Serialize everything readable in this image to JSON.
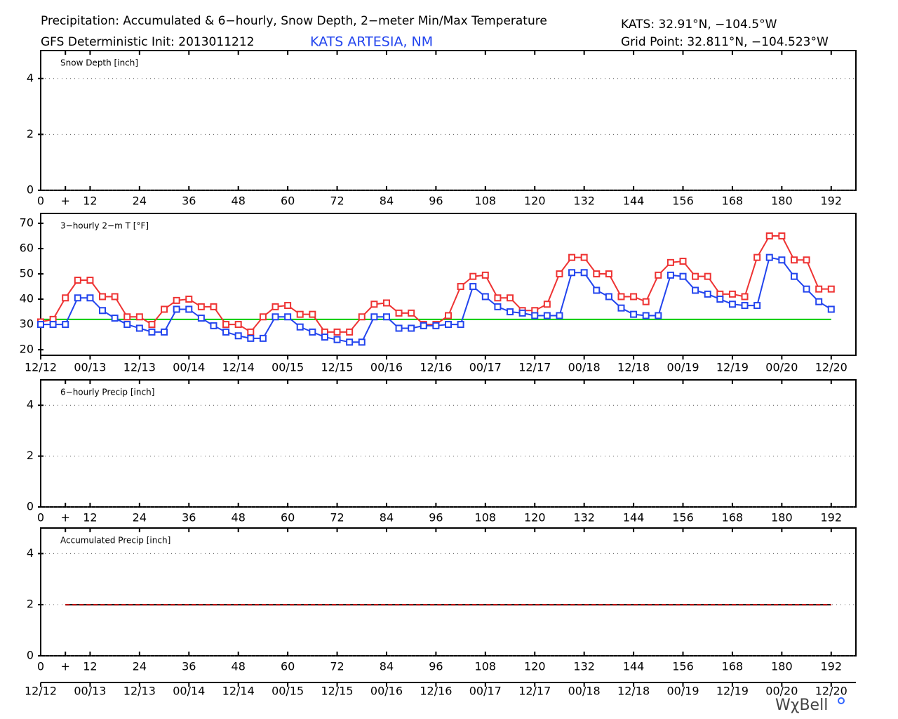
{
  "header": {
    "title": "Precipitation: Accumulated & 6−hourly, Snow Depth, 2−meter Min/Max Temperature",
    "model": "GFS Deterministic Init: 2013011212",
    "station": "KATS ARTESIA, NM",
    "station_coords": "KATS: 32.91°N, −104.5°W",
    "grid_point": "Grid Point: 32.811°N, −104.523°W"
  },
  "footer": {
    "logo": "WχBell"
  },
  "chart_data": [
    {
      "type": "line",
      "title": "Snow Depth [inch]",
      "xlim": [
        0,
        198
      ],
      "ylim": [
        0,
        5
      ],
      "yticks": [
        0,
        2,
        4
      ],
      "grid": true,
      "xticks": [
        0,
        {
          "value": 6,
          "label": "+"
        },
        12,
        24,
        36,
        48,
        60,
        72,
        84,
        96,
        108,
        120,
        132,
        144,
        156,
        168,
        180,
        192
      ],
      "series": []
    },
    {
      "type": "line",
      "title": "3−hourly 2−m T [°F]",
      "xlim": [
        0,
        198
      ],
      "ylim": [
        17.8,
        73.9
      ],
      "yticks": [
        20,
        30,
        40,
        50,
        60,
        70
      ],
      "grid": false,
      "markers": true,
      "date_ticks": [
        {
          "value": 0,
          "label": "12/12"
        },
        {
          "value": 12,
          "label": "00/13"
        },
        {
          "value": 24,
          "label": "12/13"
        },
        {
          "value": 36,
          "label": "00/14"
        },
        {
          "value": 48,
          "label": "12/14"
        },
        {
          "value": 60,
          "label": "00/15"
        },
        {
          "value": 72,
          "label": "12/15"
        },
        {
          "value": 84,
          "label": "00/16"
        },
        {
          "value": 96,
          "label": "12/16"
        },
        {
          "value": 108,
          "label": "00/17"
        },
        {
          "value": 120,
          "label": "12/17"
        },
        {
          "value": 132,
          "label": "00/18"
        },
        {
          "value": 144,
          "label": "12/18"
        },
        {
          "value": 156,
          "label": "00/19"
        },
        {
          "value": 168,
          "label": "12/19"
        },
        {
          "value": 180,
          "label": "00/20"
        },
        {
          "value": 192,
          "label": "12/20"
        }
      ],
      "reference_line": {
        "value": 32,
        "color": "#00cc00"
      },
      "x": [
        0,
        3,
        6,
        9,
        12,
        15,
        18,
        21,
        24,
        27,
        30,
        33,
        36,
        39,
        42,
        45,
        48,
        51,
        54,
        57,
        60,
        63,
        66,
        69,
        72,
        75,
        78,
        81,
        84,
        87,
        90,
        93,
        96,
        99,
        102,
        105,
        108,
        111,
        114,
        117,
        120,
        123,
        126,
        129,
        132,
        135,
        138,
        141,
        144,
        147,
        150,
        153,
        156,
        159,
        162,
        165,
        168,
        171,
        174,
        177,
        180,
        183,
        186,
        189,
        192
      ],
      "series": [
        {
          "color": "#ee3333",
          "values": [
            31,
            32,
            40.5,
            47.5,
            47.5,
            41,
            41,
            33,
            33,
            30,
            36,
            39.5,
            40,
            37,
            37,
            30,
            30,
            27,
            33,
            37,
            37.5,
            34,
            34,
            27,
            27,
            27,
            33,
            38,
            38.5,
            34.5,
            34.5,
            30,
            30,
            33.5,
            45,
            49,
            49.5,
            40.5,
            40.5,
            35.5,
            35.5,
            38,
            50,
            56.5,
            56.5,
            50,
            50,
            41,
            41,
            39,
            49.5,
            54.5,
            55,
            49,
            49,
            42,
            42,
            41,
            56.5,
            65,
            65,
            55.5,
            55.5,
            44,
            44
          ]
        },
        {
          "color": "#2244ee",
          "values": [
            30,
            30,
            30,
            40.5,
            40.5,
            35.5,
            32.5,
            30,
            28.5,
            27,
            27,
            36,
            36,
            32.5,
            29.5,
            27,
            25.5,
            24.5,
            24.5,
            33,
            33,
            29,
            27,
            25,
            24,
            23,
            23,
            33,
            33,
            28.5,
            28.5,
            29.5,
            29.5,
            30,
            30,
            45,
            41,
            37,
            35,
            34.5,
            33.5,
            33.5,
            33.5,
            50.5,
            50.5,
            43.5,
            41,
            36.5,
            34,
            33.5,
            33.5,
            49.5,
            49,
            43.5,
            42,
            40,
            38,
            37.5,
            37.5,
            56.5,
            55.5,
            49,
            44,
            39,
            36
          ]
        }
      ]
    },
    {
      "type": "line",
      "title": "6−hourly Precip [inch]",
      "xlim": [
        0,
        198
      ],
      "ylim": [
        0,
        5
      ],
      "yticks": [
        0,
        2,
        4
      ],
      "grid": true,
      "xticks": [
        0,
        {
          "value": 6,
          "label": "+"
        },
        12,
        24,
        36,
        48,
        60,
        72,
        84,
        96,
        108,
        120,
        132,
        144,
        156,
        168,
        180,
        192
      ],
      "series": []
    },
    {
      "type": "line",
      "title": "Accumulated Precip [inch]",
      "xlim": [
        0,
        198
      ],
      "ylim": [
        0,
        5
      ],
      "yticks": [
        0,
        2,
        4
      ],
      "grid": true,
      "xticks": [
        0,
        {
          "value": 6,
          "label": "+"
        },
        12,
        24,
        36,
        48,
        60,
        72,
        84,
        96,
        108,
        120,
        132,
        144,
        156,
        168,
        180,
        192
      ],
      "date_ticks": [
        {
          "value": 0,
          "label": "12/12"
        },
        {
          "value": 12,
          "label": "00/13"
        },
        {
          "value": 24,
          "label": "12/13"
        },
        {
          "value": 36,
          "label": "00/14"
        },
        {
          "value": 48,
          "label": "12/14"
        },
        {
          "value": 60,
          "label": "00/15"
        },
        {
          "value": 72,
          "label": "12/15"
        },
        {
          "value": 84,
          "label": "00/16"
        },
        {
          "value": 96,
          "label": "12/16"
        },
        {
          "value": 108,
          "label": "00/17"
        },
        {
          "value": 120,
          "label": "12/17"
        },
        {
          "value": 132,
          "label": "00/18"
        },
        {
          "value": 144,
          "label": "12/18"
        },
        {
          "value": 156,
          "label": "00/19"
        },
        {
          "value": 168,
          "label": "12/19"
        },
        {
          "value": 180,
          "label": "00/20"
        },
        {
          "value": 192,
          "label": "12/20"
        }
      ],
      "x": [
        6,
        192
      ],
      "series": [
        {
          "color": "#cc0000",
          "line_style": "dashed",
          "values": [
            2,
            2
          ]
        }
      ]
    }
  ]
}
